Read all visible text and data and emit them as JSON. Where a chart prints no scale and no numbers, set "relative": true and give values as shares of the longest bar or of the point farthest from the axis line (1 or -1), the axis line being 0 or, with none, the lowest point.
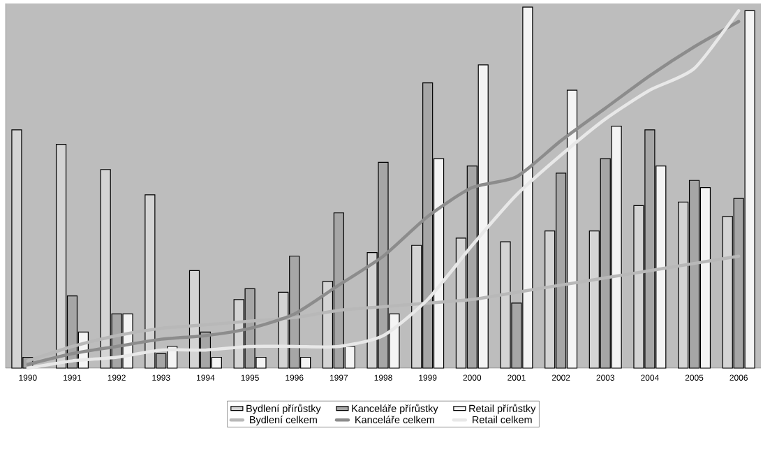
{
  "chart_data": {
    "type": "bar",
    "relative": true,
    "legend": "bottom",
    "categories": [
      "1990",
      "1991",
      "1992",
      "1993",
      "1994",
      "1995",
      "1996",
      "1997",
      "1998",
      "1999",
      "2000",
      "2001",
      "2002",
      "2003",
      "2004",
      "2005",
      "2006"
    ],
    "series": [
      {
        "name": "Bydlení přírůstky",
        "type": "bar",
        "color": "#d4d4d4",
        "values": [
          0.66,
          0.62,
          0.55,
          0.48,
          0.27,
          0.19,
          0.21,
          0.24,
          0.32,
          0.34,
          0.36,
          0.35,
          0.38,
          0.38,
          0.45,
          0.46,
          0.42
        ]
      },
      {
        "name": "Kanceláře přírůstky",
        "type": "bar",
        "color": "#a6a6a6",
        "values": [
          0.03,
          0.2,
          0.15,
          0.04,
          0.1,
          0.22,
          0.31,
          0.43,
          0.57,
          0.79,
          0.56,
          0.18,
          0.54,
          0.58,
          0.66,
          0.52,
          0.47
        ]
      },
      {
        "name": "Retail přírůstky",
        "type": "bar",
        "color": "#f4f4f4",
        "values": [
          null,
          0.1,
          0.15,
          0.06,
          0.03,
          0.03,
          0.03,
          0.06,
          0.15,
          0.58,
          0.84,
          1.0,
          0.77,
          0.67,
          0.56,
          0.5,
          0.99
        ]
      },
      {
        "name": "Bydlení celkem",
        "type": "line",
        "color": "#b8b8b8",
        "values": [
          0.02,
          0.06,
          0.09,
          0.11,
          0.12,
          0.13,
          0.14,
          0.16,
          0.17,
          0.18,
          0.19,
          0.21,
          0.23,
          0.25,
          0.27,
          0.29,
          0.31
        ]
      },
      {
        "name": "Kanceláře celkem",
        "type": "line",
        "color": "#8c8c8c",
        "values": [
          0.01,
          0.04,
          0.06,
          0.08,
          0.09,
          0.11,
          0.15,
          0.23,
          0.31,
          0.42,
          0.5,
          0.53,
          0.63,
          0.72,
          0.81,
          0.89,
          0.96
        ]
      },
      {
        "name": "Retail celkem",
        "type": "line",
        "color": "#e8e8e8",
        "values": [
          0,
          0.02,
          0.03,
          0.05,
          0.05,
          0.06,
          0.06,
          0.06,
          0.09,
          0.19,
          0.34,
          0.48,
          0.59,
          0.69,
          0.77,
          0.83,
          0.99
        ]
      }
    ]
  }
}
